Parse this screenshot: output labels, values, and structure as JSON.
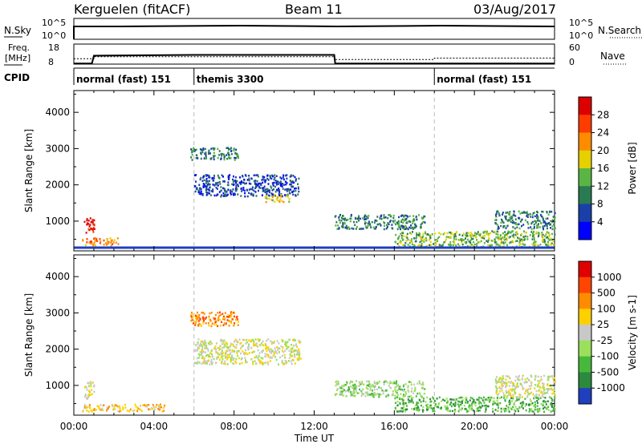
{
  "header": {
    "station": "Kerguelen (fitACF)",
    "beam": "Beam 11",
    "date": "03/Aug/2017"
  },
  "status_panels": {
    "nsky_label": "N.Sky",
    "nsky_ticks": [
      "10^5",
      "10^0"
    ],
    "nsearch_label": "N.Search",
    "nsearch_ticks": [
      "10^5",
      "10^0"
    ],
    "freq_label": "Freq.",
    "freq_unit": "[MHz]",
    "freq_ticks": [
      "18",
      "8"
    ],
    "nave_label": "Nave",
    "nave_ticks": [
      "60",
      "0"
    ],
    "cpid_label": "CPID",
    "cpid_segments": [
      {
        "start_hour": 0,
        "label": "normal (fast) 151"
      },
      {
        "start_hour": 6,
        "label": "themis 3300"
      },
      {
        "start_hour": 18,
        "label": "normal (fast) 151"
      }
    ],
    "freq_trace": [
      [
        0,
        8.3
      ],
      [
        0.9,
        8.3
      ],
      [
        1.0,
        12.2
      ],
      [
        6,
        12.6
      ],
      [
        13,
        12.6
      ],
      [
        13.05,
        8.3
      ],
      [
        24,
        8.3
      ]
    ],
    "nave_trace": [
      [
        0,
        16
      ],
      [
        1,
        16
      ],
      [
        1,
        22
      ],
      [
        13,
        22
      ],
      [
        13,
        14
      ],
      [
        18,
        14
      ],
      [
        18,
        18
      ],
      [
        24,
        18
      ]
    ]
  },
  "chart_data": [
    {
      "type": "heatmap",
      "panel": "power",
      "ylabel": "Slant Range [km]",
      "ylim": [
        180,
        4600
      ],
      "yticks": [
        "1000",
        "2000",
        "3000",
        "4000"
      ],
      "xlim": [
        0,
        24
      ],
      "colorbar_label": "Power [dB]",
      "colorbar_ticks": [
        "4",
        "8",
        "12",
        "16",
        "20",
        "24",
        "28"
      ],
      "colors": [
        "#0000ff",
        "#1a3fa8",
        "#2a7a52",
        "#5ab545",
        "#e6d000",
        "#ff8c00",
        "#ff3c00",
        "#dd0000"
      ],
      "regions": [
        {
          "t0": 0.5,
          "t1": 1.0,
          "r0": 650,
          "r1": 1150,
          "level": 7
        },
        {
          "t0": 0.4,
          "t1": 2.2,
          "r0": 350,
          "r1": 560,
          "level": 5
        },
        {
          "t0": 5.8,
          "t1": 8.2,
          "r0": 2700,
          "r1": 3050,
          "level": 2
        },
        {
          "t0": 6.0,
          "t1": 11.2,
          "r0": 1700,
          "r1": 2300,
          "level": 1
        },
        {
          "t0": 9.5,
          "t1": 10.8,
          "r0": 1550,
          "r1": 1750,
          "level": 4
        },
        {
          "t0": 13.0,
          "t1": 17.5,
          "r0": 800,
          "r1": 1200,
          "level": 2
        },
        {
          "t0": 16.0,
          "t1": 24.0,
          "r0": 300,
          "r1": 750,
          "level": 3
        },
        {
          "t0": 21.0,
          "t1": 24.0,
          "r0": 800,
          "r1": 1300,
          "level": 2
        }
      ]
    },
    {
      "type": "heatmap",
      "panel": "velocity",
      "ylabel": "Slant Range [km]",
      "ylim": [
        180,
        4600
      ],
      "yticks": [
        "1000",
        "2000",
        "3000",
        "4000"
      ],
      "xlim": [
        0,
        24
      ],
      "xticks": [
        "00:00",
        "04:00",
        "08:00",
        "12:00",
        "16:00",
        "20:00",
        "00:00"
      ],
      "xlabel": "Time UT",
      "colorbar_label": "Velocity [m s-1]",
      "colorbar_ticks": [
        "1000",
        "500",
        "100",
        "25",
        "-25",
        "-100",
        "-500",
        "-1000"
      ],
      "colors": [
        "#1f3fbf",
        "#2b8a3e",
        "#48b83c",
        "#9ae05a",
        "#c8c8c8",
        "#ffd000",
        "#ff8c00",
        "#ff4500",
        "#e00000"
      ],
      "regions": [
        {
          "t0": 0.5,
          "t1": 1.0,
          "r0": 650,
          "r1": 1150,
          "level": 4
        },
        {
          "t0": 0.4,
          "t1": 4.5,
          "r0": 300,
          "r1": 500,
          "level": 5
        },
        {
          "t0": 5.8,
          "t1": 8.2,
          "r0": 2650,
          "r1": 3050,
          "level": 6
        },
        {
          "t0": 6.0,
          "t1": 11.3,
          "r0": 1600,
          "r1": 2300,
          "level": 4
        },
        {
          "t0": 13.0,
          "t1": 17.5,
          "r0": 700,
          "r1": 1150,
          "level": 3
        },
        {
          "t0": 16.0,
          "t1": 24.0,
          "r0": 300,
          "r1": 700,
          "level": 2
        },
        {
          "t0": 21.0,
          "t1": 24.0,
          "r0": 700,
          "r1": 1300,
          "level": 4
        }
      ]
    }
  ]
}
